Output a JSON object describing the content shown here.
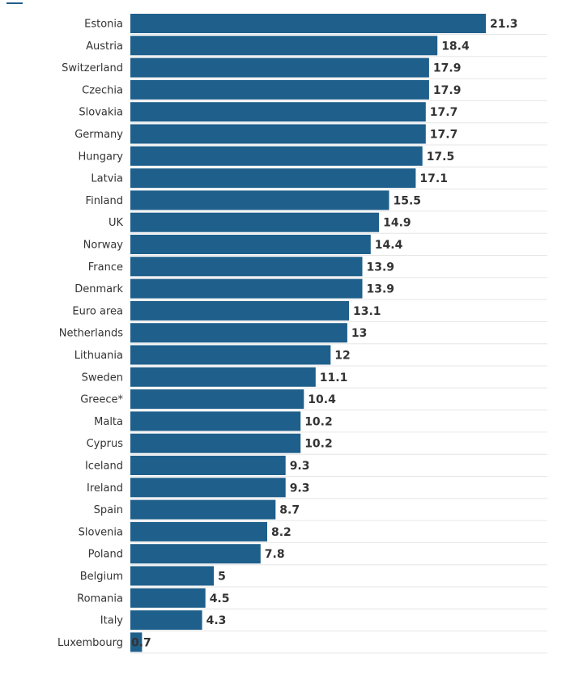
{
  "colors": {
    "bar": "#1f5f8b",
    "grid": "#e6e6e6",
    "text": "#333333"
  },
  "chart_data": {
    "type": "bar",
    "orientation": "horizontal",
    "categories": [
      "Estonia",
      "Austria",
      "Switzerland",
      "Czechia",
      "Slovakia",
      "Germany",
      "Hungary",
      "Latvia",
      "Finland",
      "UK",
      "Norway",
      "France",
      "Denmark",
      "Euro area",
      "Netherlands",
      "Lithuania",
      "Sweden",
      "Greece*",
      "Malta",
      "Cyprus",
      "Iceland",
      "Ireland",
      "Spain",
      "Slovenia",
      "Poland",
      "Belgium",
      "Romania",
      "Italy",
      "Luxembourg"
    ],
    "values": [
      21.3,
      18.4,
      17.9,
      17.9,
      17.7,
      17.7,
      17.5,
      17.1,
      15.5,
      14.9,
      14.4,
      13.9,
      13.9,
      13.1,
      13,
      12,
      11.1,
      10.4,
      10.2,
      10.2,
      9.3,
      9.3,
      8.7,
      8.2,
      7.8,
      5,
      4.5,
      4.3,
      0.7
    ],
    "value_labels": [
      "21.3",
      "18.4",
      "17.9",
      "17.9",
      "17.7",
      "17.7",
      "17.5",
      "17.1",
      "15.5",
      "14.9",
      "14.4",
      "13.9",
      "13.9",
      "13.1",
      "13",
      "12",
      "11.1",
      "10.4",
      "10.2",
      "10.2",
      "9.3",
      "9.3",
      "8.7",
      "8.2",
      "7.8",
      "5",
      "4.5",
      "4.3",
      "0.7"
    ],
    "xlim": [
      0,
      21.3
    ],
    "grid": true,
    "title": "",
    "xlabel": "",
    "ylabel": ""
  }
}
